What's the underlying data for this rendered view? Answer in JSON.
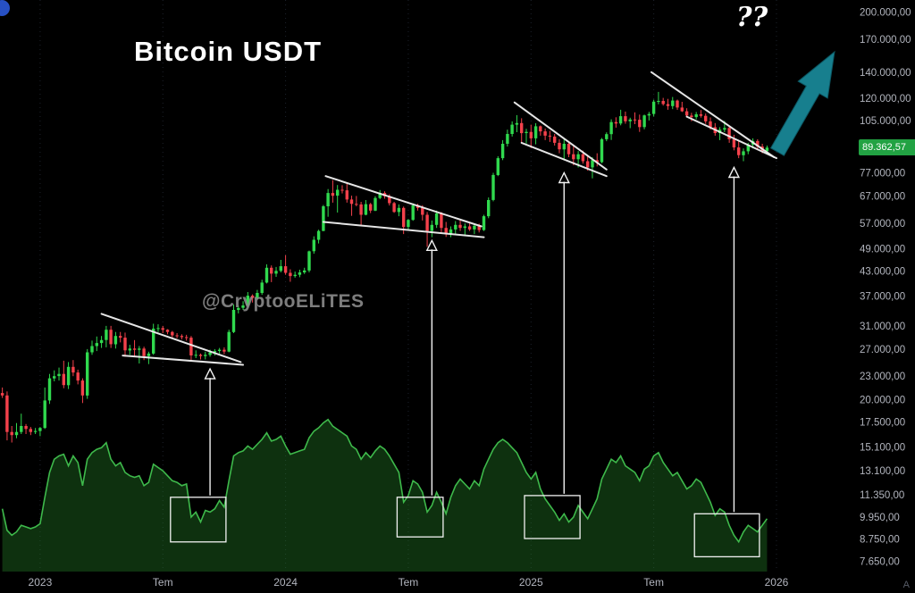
{
  "title": "Bitcoin USDT",
  "watermark": "@CryptooELiTES",
  "question_annotation": "??",
  "corner_letter": "A",
  "colors": {
    "background": "#000000",
    "candle_up": "#30d94e",
    "candle_down": "#f4414b",
    "indicator_line": "#3eb94b",
    "indicator_fill": "rgba(38,128,40,0.38)",
    "trendline": "#f2f2f2",
    "projection_arrow": "#177f8e",
    "projection_arrow_edge": "#0c5662",
    "axis_text": "#b2b5be",
    "grid": "#1d222c",
    "price_tag_bg": "#22a243",
    "price_tag_text": "#ffffff",
    "watermark_text": "#8f8f8f"
  },
  "price_axis": {
    "scale": {
      "type": "log",
      "top": 215000,
      "bottom": 7200
    },
    "current": {
      "value": 89362.57,
      "label": "89.362,57"
    },
    "ticks": [
      {
        "value": 200000,
        "label": "200.000,00"
      },
      {
        "value": 170000,
        "label": "170.000,00"
      },
      {
        "value": 140000,
        "label": "140.000,00"
      },
      {
        "value": 120000,
        "label": "120.000,00"
      },
      {
        "value": 105000,
        "label": "105.000,00"
      },
      {
        "value": 77000,
        "label": "77.000,00"
      },
      {
        "value": 67000,
        "label": "67.000,00"
      },
      {
        "value": 57000,
        "label": "57.000,00"
      },
      {
        "value": 49000,
        "label": "49.000,00"
      },
      {
        "value": 43000,
        "label": "43.000,00"
      },
      {
        "value": 37000,
        "label": "37.000,00"
      },
      {
        "value": 31000,
        "label": "31.000,00"
      },
      {
        "value": 27000,
        "label": "27.000,00"
      },
      {
        "value": 23000,
        "label": "23.000,00"
      },
      {
        "value": 20000,
        "label": "20.000,00"
      },
      {
        "value": 17500,
        "label": "17.500,00"
      },
      {
        "value": 15100,
        "label": "15.100,00"
      },
      {
        "value": 13100,
        "label": "13.100,00"
      },
      {
        "value": 11350,
        "label": "11.350,00"
      },
      {
        "value": 9950,
        "label": "9.950,00"
      },
      {
        "value": 8750,
        "label": "8.750,00"
      },
      {
        "value": 7650,
        "label": "7.650,00"
      }
    ]
  },
  "time_axis": {
    "labels": [
      {
        "week": 9,
        "label": "2023"
      },
      {
        "week": 35,
        "label": "Tem"
      },
      {
        "week": 61,
        "label": "2024"
      },
      {
        "week": 87,
        "label": "Tem"
      },
      {
        "week": 113,
        "label": "2025"
      },
      {
        "week": 139,
        "label": "Tem"
      },
      {
        "week": 165,
        "label": "2026"
      }
    ]
  },
  "chart_data": {
    "type": "candlestick",
    "title": "Bitcoin USDT",
    "log_scale": true,
    "ylim": [
      7200,
      215000
    ],
    "y_ticks": [
      200000,
      170000,
      140000,
      120000,
      105000,
      77000,
      67000,
      57000,
      49000,
      43000,
      37000,
      31000,
      27000,
      23000,
      20000,
      17500,
      15100,
      13100,
      11350,
      9950,
      8750,
      7650
    ],
    "x_ticks": [
      "2023",
      "Tem",
      "2024",
      "Tem",
      "2025",
      "Tem",
      "2026"
    ],
    "current_price": 89362.57,
    "price_unit": "thousands USDT",
    "x_unit": "week_index",
    "candles": [
      [
        20.8,
        21.5,
        20.2,
        20.5
      ],
      [
        20.5,
        21.0,
        15.7,
        16.5
      ],
      [
        16.5,
        17.1,
        15.5,
        16.2
      ],
      [
        16.2,
        17.4,
        15.9,
        16.5
      ],
      [
        16.5,
        18.4,
        16.3,
        17.1
      ],
      [
        17.1,
        17.3,
        16.3,
        16.8
      ],
      [
        16.8,
        17.0,
        16.2,
        16.5
      ],
      [
        16.5,
        16.9,
        16.3,
        16.6
      ],
      [
        16.6,
        17.0,
        16.1,
        16.9
      ],
      [
        16.9,
        21.5,
        16.8,
        19.9
      ],
      [
        19.9,
        23.3,
        19.5,
        22.7
      ],
      [
        22.7,
        23.8,
        22.3,
        23.0
      ],
      [
        23.0,
        24.2,
        22.4,
        23.3
      ],
      [
        23.3,
        25.2,
        21.4,
        21.8
      ],
      [
        21.8,
        25.0,
        21.3,
        24.3
      ],
      [
        24.3,
        25.3,
        23.0,
        23.5
      ],
      [
        23.5,
        23.9,
        21.9,
        22.4
      ],
      [
        22.4,
        22.7,
        19.6,
        20.5
      ],
      [
        20.5,
        27.0,
        20.1,
        26.5
      ],
      [
        26.5,
        28.4,
        26.1,
        27.5
      ],
      [
        27.5,
        29.1,
        26.7,
        28.0
      ],
      [
        28.0,
        29.2,
        27.2,
        28.5
      ],
      [
        28.5,
        31.0,
        27.3,
        30.3
      ],
      [
        30.3,
        31.0,
        27.2,
        27.8
      ],
      [
        27.8,
        29.9,
        27.1,
        29.2
      ],
      [
        29.2,
        29.9,
        28.1,
        28.9
      ],
      [
        28.9,
        29.8,
        25.8,
        26.8
      ],
      [
        26.8,
        27.7,
        26.1,
        27.1
      ],
      [
        27.1,
        28.5,
        25.9,
        26.9
      ],
      [
        26.9,
        27.5,
        24.8,
        27.1
      ],
      [
        27.1,
        27.4,
        25.3,
        25.9
      ],
      [
        25.9,
        26.6,
        24.7,
        26.3
      ],
      [
        26.3,
        31.4,
        26.1,
        30.5
      ],
      [
        30.5,
        31.3,
        29.9,
        30.6
      ],
      [
        30.6,
        31.0,
        29.7,
        30.3
      ],
      [
        30.3,
        30.4,
        29.5,
        29.9
      ],
      [
        29.9,
        30.1,
        28.9,
        29.3
      ],
      [
        29.3,
        29.7,
        28.8,
        29.2
      ],
      [
        29.2,
        29.5,
        28.6,
        29.0
      ],
      [
        29.0,
        29.4,
        28.4,
        28.9
      ],
      [
        28.9,
        29.2,
        25.2,
        26.0
      ],
      [
        26.0,
        26.8,
        25.6,
        26.1
      ],
      [
        26.1,
        26.3,
        25.4,
        25.9
      ],
      [
        25.9,
        26.6,
        25.4,
        26.1
      ],
      [
        26.1,
        26.9,
        25.8,
        26.5
      ],
      [
        26.5,
        27.0,
        26.0,
        26.7
      ],
      [
        26.7,
        27.2,
        26.3,
        26.9
      ],
      [
        26.9,
        27.3,
        26.2,
        26.6
      ],
      [
        26.6,
        30.3,
        26.5,
        29.9
      ],
      [
        29.9,
        35.2,
        29.7,
        34.1
      ],
      [
        34.1,
        35.0,
        33.4,
        34.5
      ],
      [
        34.5,
        35.9,
        34.1,
        35.0
      ],
      [
        35.0,
        37.9,
        34.7,
        37.1
      ],
      [
        37.1,
        37.4,
        35.6,
        36.6
      ],
      [
        36.6,
        38.4,
        36.2,
        37.7
      ],
      [
        37.7,
        40.8,
        37.3,
        40.1
      ],
      [
        40.1,
        44.7,
        39.9,
        43.8
      ],
      [
        43.8,
        44.4,
        40.2,
        42.3
      ],
      [
        42.3,
        44.0,
        41.5,
        43.0
      ],
      [
        43.0,
        45.9,
        42.6,
        44.2
      ],
      [
        44.2,
        47.2,
        42.0,
        42.5
      ],
      [
        42.5,
        43.4,
        40.3,
        41.7
      ],
      [
        41.7,
        42.8,
        41.3,
        42.0
      ],
      [
        42.0,
        43.3,
        41.4,
        42.6
      ],
      [
        42.6,
        43.8,
        42.2,
        43.1
      ],
      [
        43.1,
        48.5,
        42.6,
        48.3
      ],
      [
        48.3,
        52.8,
        47.6,
        51.7
      ],
      [
        51.7,
        54.9,
        50.6,
        54.5
      ],
      [
        54.5,
        63.6,
        54.4,
        63.1
      ],
      [
        63.1,
        69.9,
        59.3,
        68.3
      ],
      [
        68.3,
        73.7,
        64.5,
        67.2
      ],
      [
        67.2,
        71.6,
        60.8,
        69.6
      ],
      [
        69.6,
        71.5,
        68.1,
        69.4
      ],
      [
        69.4,
        72.7,
        64.5,
        65.7
      ],
      [
        65.7,
        67.2,
        59.6,
        64.0
      ],
      [
        64.0,
        67.1,
        63.1,
        63.8
      ],
      [
        63.8,
        64.8,
        56.5,
        60.0
      ],
      [
        60.0,
        65.5,
        59.8,
        63.9
      ],
      [
        63.9,
        64.4,
        60.6,
        61.5
      ],
      [
        61.5,
        67.0,
        61.3,
        66.3
      ],
      [
        66.3,
        69.5,
        65.8,
        68.3
      ],
      [
        68.3,
        69.0,
        66.0,
        67.0
      ],
      [
        67.0,
        67.8,
        63.4,
        64.3
      ],
      [
        64.3,
        64.8,
        60.7,
        61.0
      ],
      [
        61.0,
        63.8,
        59.5,
        62.5
      ],
      [
        62.5,
        63.0,
        53.5,
        55.8
      ],
      [
        55.8,
        58.5,
        55.0,
        58.2
      ],
      [
        58.2,
        64.2,
        57.9,
        63.5
      ],
      [
        63.5,
        64.0,
        61.5,
        62.5
      ],
      [
        62.5,
        63.5,
        58.0,
        60.0
      ],
      [
        60.0,
        61.0,
        49.6,
        54.5
      ],
      [
        54.5,
        58.0,
        52.5,
        56.5
      ],
      [
        56.5,
        61.5,
        55.5,
        60.5
      ],
      [
        60.5,
        61.0,
        54.0,
        55.5
      ],
      [
        55.5,
        57.5,
        52.6,
        53.5
      ],
      [
        53.5,
        56.0,
        52.5,
        55.0
      ],
      [
        55.0,
        57.8,
        53.5,
        56.5
      ],
      [
        56.5,
        58.0,
        54.5,
        55.5
      ],
      [
        55.5,
        57.0,
        53.0,
        56.0
      ],
      [
        56.0,
        57.2,
        54.5,
        55.0
      ],
      [
        55.0,
        56.8,
        53.5,
        56.2
      ],
      [
        56.2,
        56.9,
        54.0,
        54.8
      ],
      [
        54.8,
        60.0,
        54.5,
        59.5
      ],
      [
        59.5,
        66.5,
        58.8,
        65.5
      ],
      [
        65.5,
        77.0,
        65.0,
        76.0
      ],
      [
        76.0,
        85.0,
        75.5,
        84.0
      ],
      [
        84.0,
        93.5,
        83.0,
        91.5
      ],
      [
        91.5,
        99.5,
        90.0,
        97.0
      ],
      [
        97.0,
        104.5,
        95.5,
        102.5
      ],
      [
        102.5,
        108.5,
        98.0,
        103.5
      ],
      [
        103.5,
        106.5,
        92.2,
        97.5
      ],
      [
        97.5,
        100.0,
        91.6,
        98.2
      ],
      [
        98.2,
        102.5,
        89.2,
        94.5
      ],
      [
        94.5,
        103.4,
        91.2,
        101.5
      ],
      [
        101.5,
        102.0,
        96.0,
        98.5
      ],
      [
        98.5,
        100.2,
        93.5,
        96.0
      ],
      [
        96.0,
        98.8,
        92.5,
        95.5
      ],
      [
        95.5,
        97.0,
        90.5,
        92.0
      ],
      [
        92.0,
        94.0,
        86.5,
        88.5
      ],
      [
        88.5,
        93.8,
        83.0,
        91.5
      ],
      [
        91.5,
        92.5,
        84.5,
        86.0
      ],
      [
        86.0,
        90.8,
        80.5,
        83.5
      ],
      [
        83.5,
        87.6,
        79.5,
        86.0
      ],
      [
        86.0,
        87.8,
        81.3,
        82.5
      ],
      [
        82.5,
        85.5,
        78.0,
        79.5
      ],
      [
        79.5,
        84.5,
        74.5,
        83.0
      ],
      [
        83.0,
        86.5,
        80.0,
        82.0
      ],
      [
        82.0,
        94.7,
        81.5,
        94.0
      ],
      [
        94.0,
        97.9,
        92.9,
        96.9
      ],
      [
        96.9,
        105.8,
        93.6,
        104.1
      ],
      [
        104.1,
        107.1,
        100.7,
        103.2
      ],
      [
        103.2,
        112.0,
        102.1,
        107.8
      ],
      [
        107.8,
        110.8,
        103.1,
        104.6
      ],
      [
        104.6,
        106.8,
        100.4,
        105.7
      ],
      [
        105.7,
        110.3,
        102.8,
        105.5
      ],
      [
        105.5,
        108.8,
        98.2,
        101.0
      ],
      [
        101.0,
        108.8,
        99.7,
        108.3
      ],
      [
        108.3,
        110.6,
        105.1,
        109.2
      ],
      [
        109.2,
        118.9,
        107.6,
        117.5
      ],
      [
        117.5,
        124.5,
        115.7,
        118.0
      ],
      [
        118.0,
        120.2,
        114.8,
        115.8
      ],
      [
        115.8,
        119.5,
        112.0,
        114.5
      ],
      [
        114.5,
        120.8,
        112.4,
        118.3
      ],
      [
        118.3,
        119.0,
        111.9,
        113.5
      ],
      [
        113.5,
        117.4,
        110.5,
        111.0
      ],
      [
        111.0,
        113.0,
        107.3,
        108.2
      ],
      [
        108.2,
        110.0,
        104.6,
        107.2
      ],
      [
        107.2,
        110.5,
        105.8,
        109.0
      ],
      [
        109.0,
        111.8,
        106.9,
        108.0
      ],
      [
        108.0,
        109.5,
        103.0,
        104.5
      ],
      [
        104.5,
        107.0,
        99.5,
        101.0
      ],
      [
        101.0,
        103.5,
        96.0,
        97.5
      ],
      [
        97.5,
        101.0,
        93.5,
        99.5
      ],
      [
        99.5,
        104.8,
        98.0,
        100.5
      ],
      [
        100.5,
        101.5,
        92.0,
        94.0
      ],
      [
        94.0,
        96.5,
        88.0,
        89.5
      ],
      [
        89.5,
        93.0,
        84.0,
        85.5
      ],
      [
        85.5,
        89.0,
        82.5,
        87.5
      ],
      [
        87.5,
        92.0,
        86.0,
        91.0
      ],
      [
        91.0,
        94.5,
        89.0,
        93.0
      ],
      [
        93.0,
        94.0,
        88.5,
        90.0
      ],
      [
        90.0,
        91.5,
        86.5,
        87.5
      ],
      [
        87.5,
        90.5,
        86.0,
        89.4
      ]
    ],
    "indicator": {
      "style": "area-line",
      "range": [
        0,
        100
      ],
      "values": [
        38,
        25,
        22,
        24,
        28,
        27,
        26,
        27,
        29,
        45,
        60,
        68,
        70,
        71,
        64,
        70,
        66,
        52,
        68,
        72,
        74,
        75,
        78,
        68,
        64,
        66,
        60,
        58,
        57,
        58,
        52,
        54,
        65,
        63,
        61,
        58,
        55,
        54,
        52,
        53,
        33,
        36,
        30,
        37,
        36,
        38,
        43,
        39,
        55,
        70,
        72,
        73,
        76,
        74,
        77,
        80,
        84,
        79,
        80,
        82,
        76,
        71,
        72,
        73,
        74,
        81,
        85,
        87,
        90,
        92,
        88,
        86,
        84,
        82,
        76,
        74,
        68,
        72,
        69,
        73,
        76,
        74,
        70,
        65,
        60,
        42,
        46,
        55,
        53,
        48,
        36,
        40,
        48,
        42,
        35,
        45,
        52,
        56,
        53,
        50,
        55,
        52,
        62,
        68,
        74,
        78,
        80,
        78,
        75,
        72,
        66,
        60,
        56,
        60,
        50,
        44,
        40,
        36,
        31,
        35,
        30,
        33,
        40,
        36,
        32,
        38,
        44,
        56,
        62,
        68,
        66,
        70,
        64,
        62,
        60,
        55,
        62,
        64,
        70,
        72,
        66,
        62,
        58,
        60,
        55,
        50,
        52,
        56,
        54,
        48,
        42,
        34,
        38,
        36,
        28,
        22,
        18,
        24,
        28,
        26,
        24,
        28,
        32
      ]
    },
    "annotations": {
      "coord_note": "wedge_lines and breakout_arrows use [week_index, price_thousands]; breakout_boxes use week_index and indicator values; projection_arrow uses px",
      "wedge_lines": [
        {
          "from": [
            22,
            33.3
          ],
          "to": [
            51.5,
            25.0
          ]
        },
        {
          "from": [
            26.5,
            26.0
          ],
          "to": [
            52,
            24.6
          ]
        },
        {
          "from": [
            69.5,
            75.5
          ],
          "to": [
            102.5,
            56.0
          ]
        },
        {
          "from": [
            69,
            57.5
          ],
          "to": [
            103,
            52.5
          ]
        },
        {
          "from": [
            109.5,
            117.0
          ],
          "to": [
            129,
            78.5
          ]
        },
        {
          "from": [
            111,
            92.0
          ],
          "to": [
            129,
            75.5
          ]
        },
        {
          "from": [
            138.5,
            140.0
          ],
          "to": [
            164.5,
            84.5
          ]
        },
        {
          "from": [
            146,
            107.5
          ],
          "to": [
            165,
            84.0
          ]
        }
      ],
      "breakout_boxes": [
        {
          "w1": 37,
          "w2": 48,
          "v1": 18,
          "v2": 45
        },
        {
          "w1": 85,
          "w2": 94,
          "v1": 21,
          "v2": 45
        },
        {
          "w1": 112,
          "w2": 123,
          "v1": 20,
          "v2": 46
        },
        {
          "w1": 148,
          "w2": 161,
          "v1": 9,
          "v2": 35
        }
      ],
      "breakout_arrows": [
        {
          "week": 45,
          "top_price": 24.0
        },
        {
          "week": 92,
          "top_price": 51.5
        },
        {
          "week": 120,
          "top_price": 77.0
        },
        {
          "week": 156,
          "top_price": 79.5
        }
      ],
      "projection_arrow": {
        "from": [
          870,
          170
        ],
        "to": [
          934,
          58
        ],
        "shaft_width": 17,
        "head_width": 38,
        "head_frac": 0.38
      }
    }
  }
}
